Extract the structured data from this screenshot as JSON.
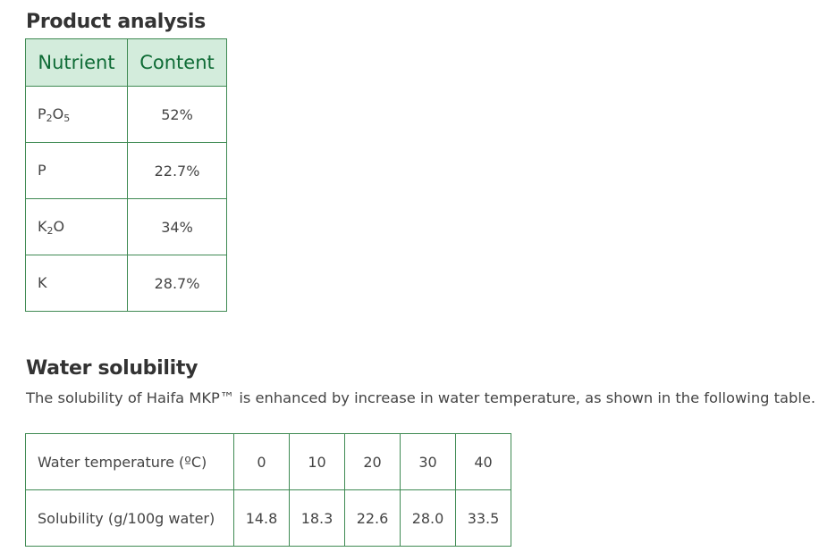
{
  "product_analysis": {
    "title": "Product analysis",
    "headers": [
      "Nutrient",
      "Content"
    ],
    "rows": [
      {
        "nutrient_parts": [
          "P",
          "2",
          "O",
          "5"
        ],
        "content": "52%"
      },
      {
        "nutrient_parts": [
          "P",
          "",
          "",
          ""
        ],
        "content": "22.7%"
      },
      {
        "nutrient_parts": [
          "K",
          "2",
          "O",
          ""
        ],
        "content": "34%"
      },
      {
        "nutrient_parts": [
          "K",
          "",
          "",
          ""
        ],
        "content": "28.7%"
      }
    ]
  },
  "water_solubility": {
    "title": "Water solubility",
    "description": "The solubility of Haifa MKP™ is enhanced by increase in water temperature, as shown in the following table.",
    "rows": [
      {
        "label": "Water temperature (ºC)",
        "values": [
          "0",
          "10",
          "20",
          "30",
          "40"
        ]
      },
      {
        "label": "Solubility (g/100g water)",
        "values": [
          "14.8",
          "18.3",
          "22.6",
          "28.0",
          "33.5"
        ]
      }
    ]
  },
  "colors": {
    "header_bg": "#d3ecdc",
    "header_text": "#0e6b35",
    "border": "#3f8a53"
  }
}
